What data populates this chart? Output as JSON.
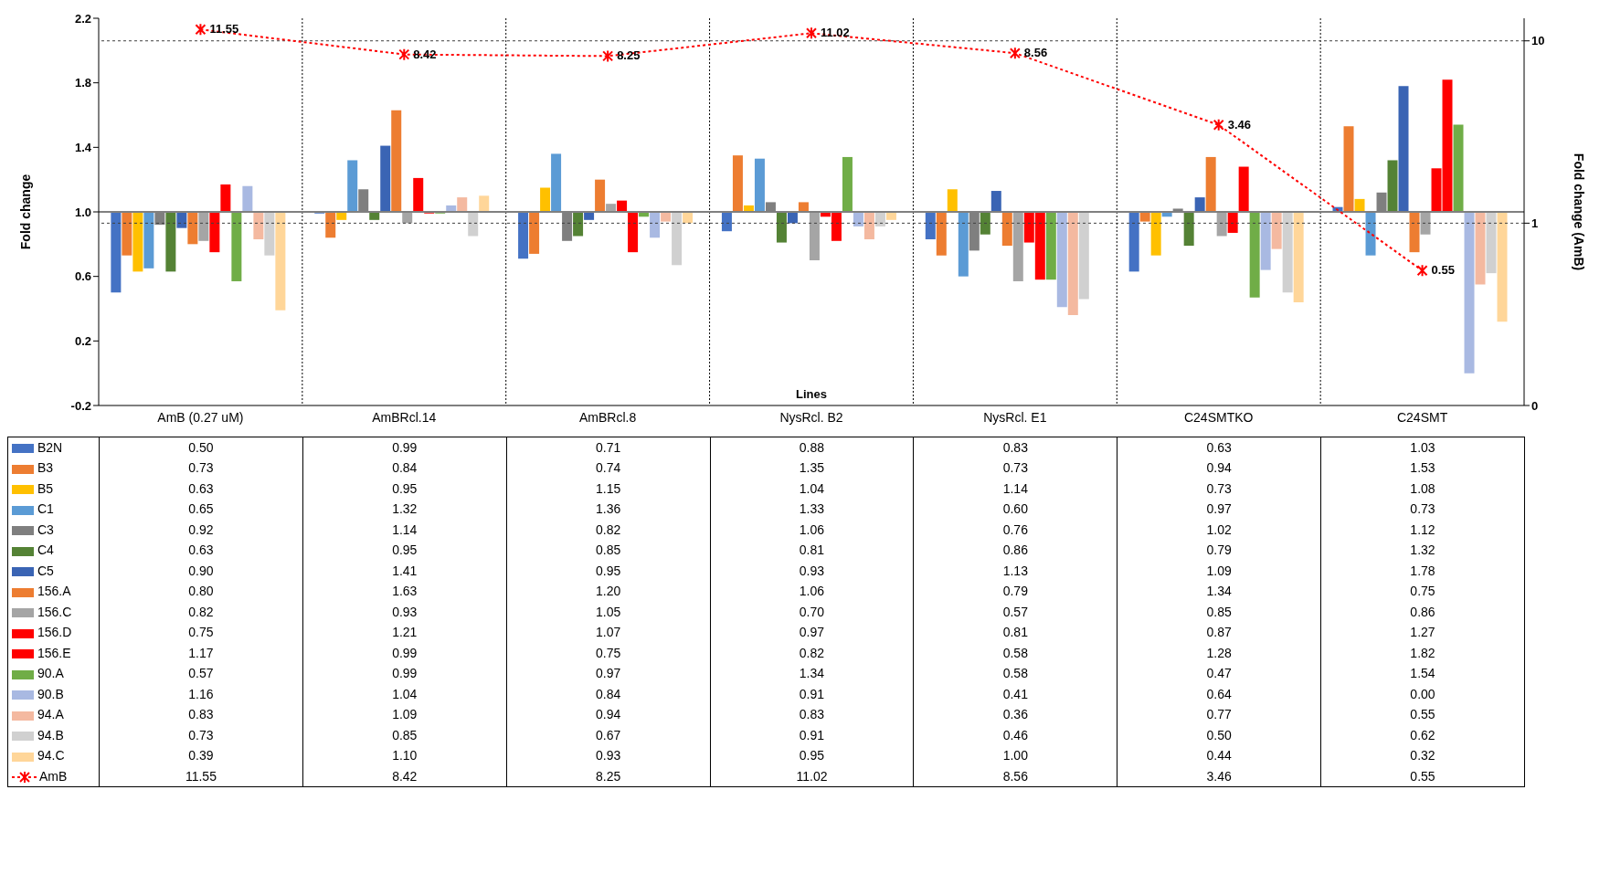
{
  "chart_data": {
    "type": "bar",
    "xlabel": "Lines",
    "ylabel": "Fold change",
    "y2label": "Fold change (AmB)",
    "categories": [
      "AmB (0.27 uM)",
      "AmBRcl.14",
      "AmBRcl.8",
      "NysRcl. B2",
      "NysRcl. E1",
      "C24SMTKO",
      "C24SMT"
    ],
    "ylim": [
      -0.2,
      2.2
    ],
    "yticks": [
      -0.2,
      0.2,
      0.6,
      {
        "value": 1,
        "label": "1.0"
      },
      1.4,
      1.8,
      2.2
    ],
    "y2lim": [
      0.1,
      13.3
    ],
    "y2ticks": [
      {
        "value": 0.1,
        "label": "0"
      },
      1,
      10
    ],
    "log": "y2",
    "grid": "x",
    "legend": "bottom",
    "marker": "cross",
    "line_style": "dotted",
    "ref_lines": [
      {
        "axis": "y",
        "value": 1,
        "color": "#808080",
        "line_style": "solid"
      },
      {
        "axis": "y2",
        "value": 1,
        "color": "#404040",
        "line_style": "dotted"
      },
      {
        "axis": "y2",
        "value": 10,
        "color": "#404040",
        "line_style": "dotted"
      }
    ],
    "series": [
      {
        "name": "B2N",
        "color": "#4472c4",
        "base": [
          1,
          1,
          1,
          1,
          1,
          1,
          1
        ],
        "values": [
          -0.5,
          -0.01,
          -0.29,
          -0.12,
          -0.17,
          -0.37,
          0.03
        ],
        "value_labels": [
          "0.50",
          "0.99",
          "0.71",
          "0.88",
          "0.83",
          "0.63",
          "1.03"
        ]
      },
      {
        "name": "B3",
        "color": "#ed7d31",
        "base": [
          1,
          1,
          1,
          1,
          1,
          1,
          1
        ],
        "values": [
          -0.27,
          -0.16,
          -0.26,
          0.35,
          -0.27,
          -0.06,
          0.53
        ],
        "value_labels": [
          "0.73",
          "0.84",
          "0.74",
          "1.35",
          "0.73",
          "0.94",
          "1.53"
        ]
      },
      {
        "name": "B5",
        "color": "#ffc000",
        "base": [
          1,
          1,
          1,
          1,
          1,
          1,
          1
        ],
        "values": [
          -0.37,
          -0.05,
          0.15,
          0.04,
          0.14,
          -0.27,
          0.08
        ],
        "value_labels": [
          "0.63",
          "0.95",
          "1.15",
          "1.04",
          "1.14",
          "0.73",
          "1.08"
        ]
      },
      {
        "name": "C1",
        "color": "#5b9bd5",
        "base": [
          1,
          1,
          1,
          1,
          1,
          1,
          1
        ],
        "values": [
          -0.35,
          0.32,
          0.36,
          0.33,
          -0.4,
          -0.03,
          -0.27
        ],
        "value_labels": [
          "0.65",
          "1.32",
          "1.36",
          "1.33",
          "0.60",
          "0.97",
          "0.73"
        ]
      },
      {
        "name": "C3",
        "color": "#7f7f7f",
        "base": [
          1,
          1,
          1,
          1,
          1,
          1,
          1
        ],
        "values": [
          -0.08,
          0.14,
          -0.18,
          0.06,
          -0.24,
          0.02,
          0.12
        ],
        "value_labels": [
          "0.92",
          "1.14",
          "0.82",
          "1.06",
          "0.76",
          "1.02",
          "1.12"
        ]
      },
      {
        "name": "C4",
        "color": "#548235",
        "base": [
          1,
          1,
          1,
          1,
          1,
          1,
          1
        ],
        "values": [
          -0.37,
          -0.05,
          -0.15,
          -0.19,
          -0.14,
          -0.21,
          0.32
        ],
        "value_labels": [
          "0.63",
          "0.95",
          "0.85",
          "0.81",
          "0.86",
          "0.79",
          "1.32"
        ]
      },
      {
        "name": "C5",
        "color": "#3a64b4",
        "base": [
          1,
          1,
          1,
          1,
          1,
          1,
          1
        ],
        "values": [
          -0.1,
          0.41,
          -0.05,
          -0.07,
          0.13,
          0.09,
          0.78
        ],
        "value_labels": [
          "0.90",
          "1.41",
          "0.95",
          "0.93",
          "1.13",
          "1.09",
          "1.78"
        ]
      },
      {
        "name": "156.A",
        "color": "#ed7d31",
        "base": [
          1,
          1,
          1,
          1,
          1,
          1,
          1
        ],
        "values": [
          -0.2,
          0.63,
          0.2,
          0.06,
          -0.21,
          0.34,
          -0.25
        ],
        "value_labels": [
          "0.80",
          "1.63",
          "1.20",
          "1.06",
          "0.79",
          "1.34",
          "0.75"
        ]
      },
      {
        "name": "156.C",
        "color": "#a5a5a5",
        "base": [
          1,
          1,
          1,
          1,
          1,
          1,
          1
        ],
        "values": [
          -0.18,
          -0.07,
          0.05,
          -0.3,
          -0.43,
          -0.15,
          -0.14
        ],
        "value_labels": [
          "0.82",
          "0.93",
          "1.05",
          "0.70",
          "0.57",
          "0.85",
          "0.86"
        ]
      },
      {
        "name": "156.D",
        "color": "#ff0000",
        "base": [
          1,
          1,
          1,
          1,
          1,
          1,
          1
        ],
        "values": [
          -0.25,
          0.21,
          0.07,
          -0.03,
          -0.19,
          -0.13,
          0.27
        ],
        "value_labels": [
          "0.75",
          "1.21",
          "1.07",
          "0.97",
          "0.81",
          "0.87",
          "1.27"
        ]
      },
      {
        "name": "156.E",
        "color": "#ff0000",
        "base": [
          1,
          1,
          1,
          1,
          1,
          1,
          1
        ],
        "values": [
          0.17,
          -0.01,
          -0.25,
          -0.18,
          -0.42,
          0.28,
          0.82
        ],
        "value_labels": [
          "1.17",
          "0.99",
          "0.75",
          "0.82",
          "0.58",
          "1.28",
          "1.82"
        ]
      },
      {
        "name": "90.A",
        "color": "#70ad47",
        "base": [
          1,
          1,
          1,
          1,
          1,
          1,
          1
        ],
        "values": [
          -0.43,
          -0.01,
          -0.03,
          0.34,
          -0.42,
          -0.53,
          0.54
        ],
        "value_labels": [
          "0.57",
          "0.99",
          "0.97",
          "1.34",
          "0.58",
          "0.47",
          "1.54"
        ]
      },
      {
        "name": "90.B",
        "color": "#a9b9e2",
        "base": [
          1,
          1,
          1,
          1,
          1,
          1,
          1
        ],
        "values": [
          0.16,
          0.04,
          -0.16,
          -0.09,
          -0.59,
          -0.36,
          -1.0
        ],
        "value_labels": [
          "1.16",
          "1.04",
          "0.84",
          "0.91",
          "0.41",
          "0.64",
          "0.00"
        ]
      },
      {
        "name": "94.A",
        "color": "#f4b9a0",
        "base": [
          1,
          1,
          1,
          1,
          1,
          1,
          1
        ],
        "values": [
          -0.17,
          0.09,
          -0.06,
          -0.17,
          -0.64,
          -0.23,
          -0.45
        ],
        "value_labels": [
          "0.83",
          "1.09",
          "0.94",
          "0.83",
          "0.36",
          "0.77",
          "0.55"
        ]
      },
      {
        "name": "94.B",
        "color": "#d0d0d0",
        "base": [
          1,
          1,
          1,
          1,
          1,
          1,
          1
        ],
        "values": [
          -0.27,
          -0.15,
          -0.33,
          -0.09,
          -0.54,
          -0.5,
          -0.38
        ],
        "value_labels": [
          "0.73",
          "0.85",
          "0.67",
          "0.91",
          "0.46",
          "0.50",
          "0.62"
        ]
      },
      {
        "name": "94.C",
        "color": "#ffd699",
        "base": [
          1,
          1,
          1,
          1,
          null,
          1,
          1
        ],
        "values": [
          -0.61,
          0.1,
          -0.07,
          -0.05,
          null,
          -0.56,
          -0.68
        ],
        "value_labels": [
          "0.39",
          "1.10",
          "0.93",
          "0.95",
          "1.00",
          "0.44",
          "0.32"
        ]
      },
      {
        "name": "AmB",
        "type": "line",
        "axis": "y2",
        "color": "#ff0000",
        "values": [
          11.55,
          8.42,
          8.25,
          11.02,
          8.56,
          3.46,
          0.55
        ],
        "value_labels": [
          "11.55",
          "8.42",
          "8.25",
          "11.02",
          "8.56",
          "3.46",
          "0.55"
        ]
      }
    ]
  }
}
